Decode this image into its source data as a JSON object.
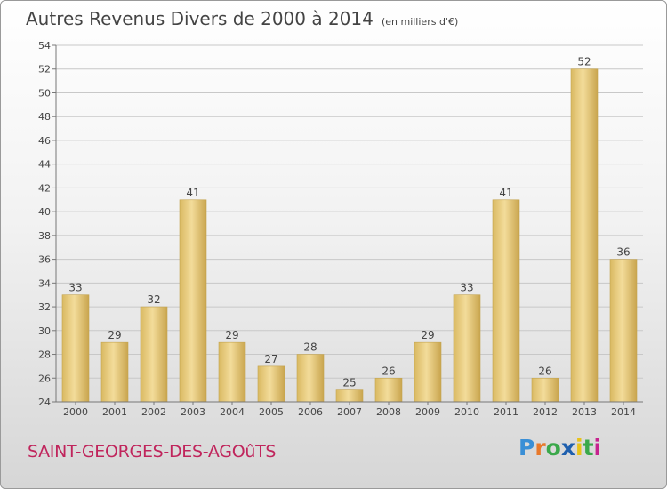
{
  "chart_data": {
    "type": "bar",
    "title": "Autres Revenus Divers de 2000 à 2014",
    "subtitle": "(en milliers d'€)",
    "categories": [
      "2000",
      "2001",
      "2002",
      "2003",
      "2004",
      "2005",
      "2006",
      "2007",
      "2008",
      "2009",
      "2010",
      "2011",
      "2012",
      "2013",
      "2014"
    ],
    "values": [
      33,
      29,
      32,
      41,
      29,
      27,
      28,
      25,
      26,
      29,
      33,
      41,
      26,
      52,
      36
    ],
    "ylim": [
      24,
      54
    ],
    "yticks": [
      24,
      26,
      28,
      30,
      32,
      34,
      36,
      38,
      40,
      42,
      44,
      46,
      48,
      50,
      52,
      54
    ],
    "grid": true,
    "bar_color": "#e6c97a"
  },
  "footer": {
    "commune": "SAINT-GEORGES-DES-AGOûTS",
    "logo_letters": [
      "P",
      "r",
      "o",
      "x",
      "i",
      "t",
      "i"
    ],
    "logo_colors": [
      "#3a8fd6",
      "#e8792b",
      "#3aa84a",
      "#1e5fae",
      "#e8c21a",
      "#3aa84a",
      "#c6238e"
    ]
  }
}
